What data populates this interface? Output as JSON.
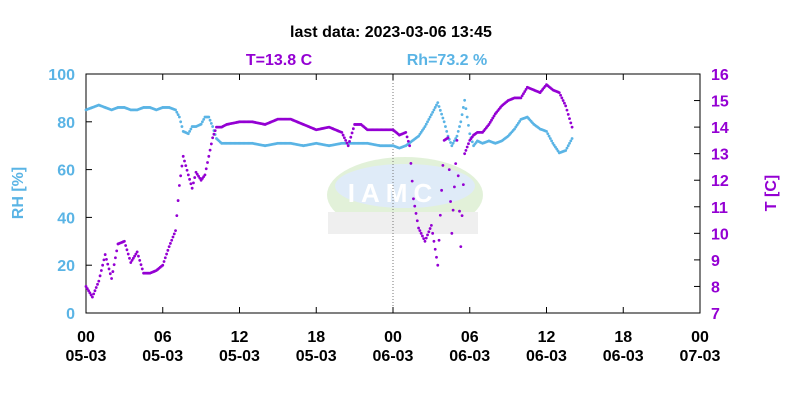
{
  "header": {
    "title": "last data: 2023-03-06 13:45",
    "t_readout": "T=13.8 C",
    "rh_readout": "Rh=73.2 %"
  },
  "watermark": {
    "text": "IAMC",
    "visible": true
  },
  "colors": {
    "rh": "#5ab4e5",
    "t": "#9400d3",
    "axis": "#000000"
  },
  "chart_data": {
    "type": "scatter",
    "title": "last data: 2023-03-06 13:45",
    "x_unit": "hours since 2023-03-05 00:00",
    "xlim": [
      0,
      48
    ],
    "x_ticks": [
      {
        "value": 0,
        "time": "00",
        "date": "05-03"
      },
      {
        "value": 6,
        "time": "06",
        "date": "05-03"
      },
      {
        "value": 12,
        "time": "12",
        "date": "05-03"
      },
      {
        "value": 18,
        "time": "18",
        "date": "05-03"
      },
      {
        "value": 24,
        "time": "00",
        "date": "06-03"
      },
      {
        "value": 30,
        "time": "06",
        "date": "06-03"
      },
      {
        "value": 36,
        "time": "12",
        "date": "06-03"
      },
      {
        "value": 42,
        "time": "18",
        "date": "06-03"
      },
      {
        "value": 48,
        "time": "00",
        "date": "07-03"
      }
    ],
    "y_left": {
      "label": "RH [%]",
      "lim": [
        0,
        100
      ],
      "ticks": [
        0,
        20,
        40,
        60,
        80,
        100
      ]
    },
    "y_right": {
      "label": "T [C]",
      "lim": [
        7,
        16
      ],
      "ticks": [
        7,
        8,
        9,
        10,
        11,
        12,
        13,
        14,
        15,
        16
      ]
    },
    "grid": false,
    "vertical_marker_x": 24,
    "series": [
      {
        "name": "Rh",
        "axis": "left",
        "color": "#5ab4e5",
        "x": [
          0,
          0.5,
          1,
          1.5,
          2,
          2.5,
          3,
          3.5,
          4,
          4.5,
          5,
          5.5,
          6,
          6.5,
          7,
          7.3,
          7.6,
          8,
          8.3,
          8.6,
          9,
          9.3,
          9.6,
          9.9,
          10.2,
          10.6,
          11,
          12,
          13,
          14,
          15,
          16,
          17,
          18,
          19,
          20,
          21,
          22,
          23,
          24,
          24.5,
          25,
          25.5,
          26,
          26.5,
          27,
          27.5,
          28,
          28.3,
          28.6,
          29,
          29.3,
          29.6,
          30,
          30.3,
          30.6,
          31,
          31.5,
          32,
          32.5,
          33,
          33.5,
          34,
          34.5,
          35,
          35.5,
          36,
          36.5,
          37,
          37.5,
          38
        ],
        "y": [
          85,
          86,
          87,
          86,
          85,
          86,
          86,
          85,
          85,
          86,
          86,
          85,
          86,
          86,
          85,
          82,
          76,
          75,
          78,
          78,
          79,
          82,
          82,
          78,
          73,
          71,
          71,
          71,
          71,
          70,
          71,
          71,
          70,
          71,
          70,
          71,
          71,
          71,
          70,
          70,
          69,
          70,
          72,
          74,
          78,
          83,
          88,
          80,
          74,
          70,
          74,
          80,
          89,
          75,
          70,
          72,
          71,
          72,
          71,
          72,
          74,
          77,
          81,
          82,
          79,
          77,
          76,
          71,
          67,
          68,
          73
        ]
      },
      {
        "name": "T",
        "axis": "right",
        "color": "#9400d3",
        "x": [
          0,
          0.5,
          1,
          1.5,
          2,
          2.5,
          3,
          3.5,
          4,
          4.5,
          5,
          5.5,
          6,
          6.5,
          7,
          7.3,
          7.6,
          8,
          8.3,
          8.6,
          9,
          9.3,
          9.6,
          9.9,
          10.2,
          10.6,
          11,
          12,
          13,
          14,
          15,
          16,
          17,
          18,
          19,
          20,
          20.5,
          21,
          21.5,
          22,
          23,
          24,
          24.5,
          25,
          25.3,
          25.6,
          26,
          26.5,
          27,
          27.5,
          28,
          28.3,
          28.6,
          29,
          29.3,
          29.6,
          30,
          30.3,
          30.6,
          31,
          31.5,
          32,
          32.5,
          33,
          33.5,
          34,
          34.5,
          35,
          35.5,
          36,
          36.5,
          37,
          37.5,
          38
        ],
        "y": [
          8.0,
          7.6,
          8.2,
          9.2,
          8.3,
          9.6,
          9.7,
          8.9,
          9.3,
          8.5,
          8.5,
          8.6,
          8.8,
          9.5,
          10.1,
          11.8,
          12.9,
          12.2,
          11.7,
          12.3,
          12.0,
          12.2,
          12.9,
          13.6,
          14.0,
          14.0,
          14.1,
          14.2,
          14.2,
          14.1,
          14.3,
          14.3,
          14.1,
          13.9,
          14.0,
          13.8,
          13.3,
          14.1,
          14.1,
          13.9,
          13.9,
          13.9,
          13.7,
          13.8,
          13.3,
          11.3,
          10.2,
          9.7,
          10.3,
          8.8,
          13.5,
          13.6,
          10.0,
          13.5,
          9.5,
          13.0,
          13.5,
          13.7,
          13.8,
          13.8,
          14.1,
          14.5,
          14.8,
          15.0,
          15.1,
          15.1,
          15.5,
          15.4,
          15.3,
          15.6,
          15.4,
          15.3,
          14.8,
          14.0
        ]
      }
    ]
  }
}
